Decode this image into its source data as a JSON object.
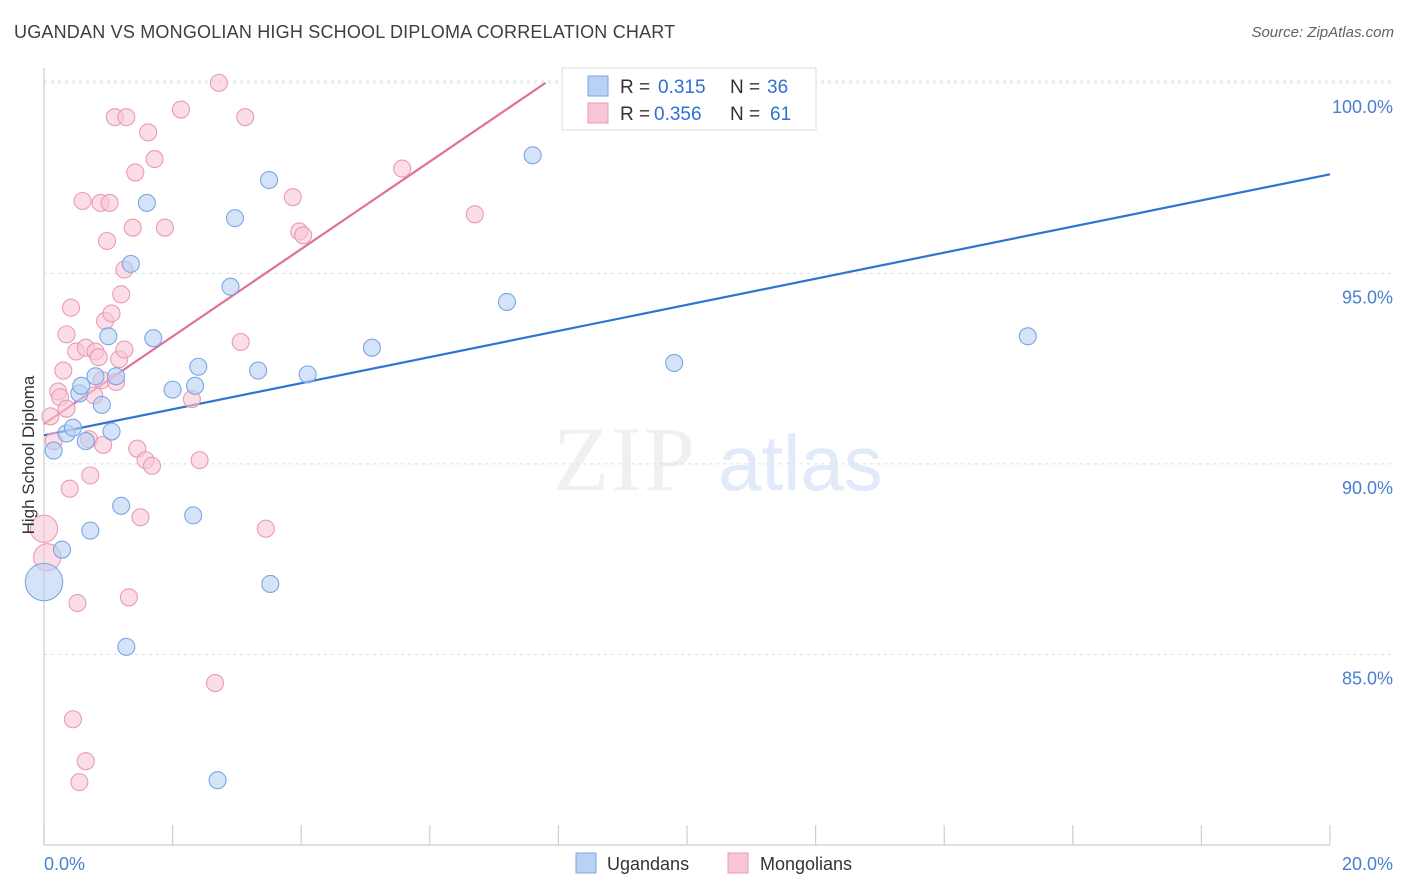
{
  "title": "UGANDAN VS MONGOLIAN HIGH SCHOOL DIPLOMA CORRELATION CHART",
  "source": "Source: ZipAtlas.com",
  "colors": {
    "blue_fill": "#b9d1f3",
    "blue_stroke": "#7aa6e6",
    "blue_line": "#2f74d0",
    "pink_fill": "#f8c6d6",
    "pink_stroke": "#eb9ab6",
    "pink_line": "#e0709a",
    "grid": "#d9dde3",
    "axis_text": "#4a7fd0"
  },
  "chart_data": {
    "type": "scatter",
    "title": "UGANDAN VS MONGOLIAN HIGH SCHOOL DIPLOMA CORRELATION CHART",
    "xlabel": "",
    "ylabel": "High School Diploma",
    "xlim": [
      0,
      20
    ],
    "ylim": [
      80.0,
      100.6
    ],
    "x_tick_labels": [
      "0.0%",
      "20.0%"
    ],
    "y_ticks": [
      85,
      90,
      95,
      100
    ],
    "y_tick_labels": [
      "85.0%",
      "90.0%",
      "95.0%",
      "100.0%"
    ],
    "legend_stats": [
      {
        "r_label": "R =",
        "r": "0.315",
        "n_label": "N =",
        "n": "36"
      },
      {
        "r_label": "R =",
        "r": "0.356",
        "n_label": "N =",
        "n": "61"
      }
    ],
    "series": [
      {
        "name": "Ugandans",
        "color": "#b9d1f3",
        "trend": [
          [
            0.0,
            90.75
          ],
          [
            20.0,
            97.6
          ]
        ],
        "points": [
          [
            0.0,
            86.9,
            2.2
          ],
          [
            0.15,
            90.35,
            1
          ],
          [
            0.28,
            87.75,
            1
          ],
          [
            0.35,
            90.8,
            1
          ],
          [
            0.45,
            90.95,
            1
          ],
          [
            0.55,
            91.85,
            1
          ],
          [
            0.58,
            92.05,
            1
          ],
          [
            0.65,
            90.6,
            1
          ],
          [
            0.72,
            88.25,
            1
          ],
          [
            0.8,
            92.3,
            1
          ],
          [
            0.9,
            91.55,
            1
          ],
          [
            1.0,
            93.35,
            1
          ],
          [
            1.05,
            90.85,
            1
          ],
          [
            1.12,
            92.3,
            1
          ],
          [
            1.2,
            88.9,
            1
          ],
          [
            1.28,
            85.2,
            1
          ],
          [
            1.35,
            95.25,
            1
          ],
          [
            1.6,
            96.85,
            1
          ],
          [
            1.7,
            93.3,
            1
          ],
          [
            2.0,
            91.95,
            1
          ],
          [
            2.35,
            92.05,
            1
          ],
          [
            2.4,
            92.55,
            1
          ],
          [
            2.32,
            88.65,
            1
          ],
          [
            2.7,
            81.7,
            1
          ],
          [
            2.9,
            94.65,
            1
          ],
          [
            2.97,
            96.45,
            1
          ],
          [
            3.33,
            92.45,
            1
          ],
          [
            3.5,
            97.45,
            1
          ],
          [
            3.52,
            86.85,
            1
          ],
          [
            4.1,
            92.35,
            1
          ],
          [
            5.1,
            93.05,
            1
          ],
          [
            7.2,
            94.25,
            1
          ],
          [
            7.6,
            98.1,
            1
          ],
          [
            9.8,
            92.65,
            1
          ],
          [
            15.3,
            93.35,
            1
          ]
        ]
      },
      {
        "name": "Mongolians",
        "color": "#f8c6d6",
        "trend": [
          [
            0.0,
            91.05
          ],
          [
            7.8,
            100.0
          ]
        ],
        "points": [
          [
            0.0,
            88.3,
            1.6
          ],
          [
            0.05,
            87.55,
            1.6
          ],
          [
            0.1,
            91.25,
            1
          ],
          [
            0.15,
            90.6,
            1
          ],
          [
            0.22,
            91.9,
            1
          ],
          [
            0.25,
            91.75,
            1
          ],
          [
            0.3,
            92.45,
            1
          ],
          [
            0.35,
            91.45,
            1
          ],
          [
            0.35,
            93.4,
            1
          ],
          [
            0.4,
            89.35,
            1
          ],
          [
            0.42,
            94.1,
            1
          ],
          [
            0.45,
            83.3,
            1
          ],
          [
            0.5,
            92.95,
            1
          ],
          [
            0.52,
            86.35,
            1
          ],
          [
            0.55,
            81.65,
            1
          ],
          [
            0.6,
            96.9,
            1
          ],
          [
            0.65,
            93.05,
            1
          ],
          [
            0.65,
            82.2,
            1
          ],
          [
            0.7,
            90.65,
            1
          ],
          [
            0.72,
            89.7,
            1
          ],
          [
            0.78,
            91.8,
            1
          ],
          [
            0.8,
            92.95,
            1
          ],
          [
            0.85,
            92.8,
            1
          ],
          [
            0.88,
            96.85,
            1
          ],
          [
            0.9,
            92.2,
            1
          ],
          [
            0.92,
            90.5,
            1
          ],
          [
            0.95,
            93.75,
            1
          ],
          [
            0.98,
            95.85,
            1
          ],
          [
            1.02,
            96.85,
            1
          ],
          [
            1.05,
            93.95,
            1
          ],
          [
            1.1,
            99.1,
            1
          ],
          [
            1.12,
            92.15,
            1
          ],
          [
            1.17,
            92.75,
            1
          ],
          [
            1.2,
            94.45,
            1
          ],
          [
            1.25,
            95.1,
            1
          ],
          [
            1.25,
            93.0,
            1
          ],
          [
            1.28,
            99.1,
            1
          ],
          [
            1.32,
            86.5,
            1
          ],
          [
            1.38,
            96.2,
            1
          ],
          [
            1.42,
            97.65,
            1
          ],
          [
            1.45,
            90.4,
            1
          ],
          [
            1.5,
            88.6,
            1
          ],
          [
            1.58,
            90.1,
            1
          ],
          [
            1.62,
            98.7,
            1
          ],
          [
            1.68,
            89.95,
            1
          ],
          [
            1.72,
            98.0,
            1
          ],
          [
            1.88,
            96.2,
            1
          ],
          [
            2.13,
            99.3,
            1
          ],
          [
            2.3,
            91.7,
            1
          ],
          [
            2.42,
            90.1,
            1
          ],
          [
            2.66,
            84.25,
            1
          ],
          [
            2.72,
            100.0,
            1
          ],
          [
            3.06,
            93.2,
            1
          ],
          [
            3.13,
            99.1,
            1
          ],
          [
            3.45,
            88.3,
            1
          ],
          [
            3.87,
            97.0,
            1
          ],
          [
            3.97,
            96.1,
            1
          ],
          [
            4.03,
            96.0,
            1
          ],
          [
            5.57,
            97.75,
            1
          ],
          [
            6.7,
            96.55,
            1
          ]
        ]
      }
    ]
  }
}
